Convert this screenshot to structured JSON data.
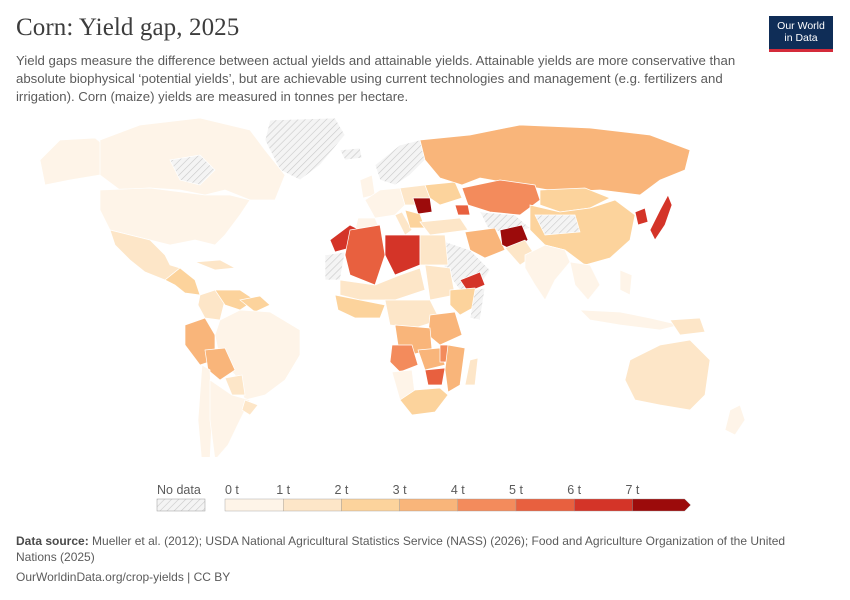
{
  "header": {
    "title": "Corn: Yield gap, 2025",
    "subtitle": "Yield gaps measure the difference between actual yields and attainable yields. Attainable yields are more conservative than absolute biophysical ‘potential yields’, but are achievable using current technologies and management (e.g. fertilizers and irrigation). Corn (maize) yields are measured in tonnes per hectare."
  },
  "logo": {
    "line1": "Our World",
    "line2": "in Data"
  },
  "legend": {
    "no_data_label": "No data",
    "ticks": [
      "0 t",
      "1 t",
      "2 t",
      "3 t",
      "4 t",
      "5 t",
      "6 t",
      "7 t"
    ],
    "colors": [
      "#fef4e8",
      "#fde6c8",
      "#fcd39c",
      "#f9b57a",
      "#f38b5c",
      "#e8603f",
      "#d43428",
      "#9c0b0b"
    ],
    "no_data_color": "#eeeeee"
  },
  "footer": {
    "source_label": "Data source:",
    "source_text": "Mueller et al. (2012); USDA National Agricultural Statistics Service (NASS) (2026); Food and Agriculture Organization of the United Nations (2025)",
    "url": "OurWorldinData.org/crop-yields | CC BY"
  },
  "chart_data": {
    "type": "choropleth",
    "title": "Corn: Yield gap, 2025",
    "unit": "tonnes per hectare",
    "scale_bins": [
      0,
      1,
      2,
      3,
      4,
      5,
      6,
      7
    ],
    "regions": [
      {
        "name": "Canada",
        "bin": 0
      },
      {
        "name": "United States",
        "bin": 0
      },
      {
        "name": "Mexico",
        "bin": 1
      },
      {
        "name": "Colombia",
        "bin": 1
      },
      {
        "name": "Venezuela",
        "bin": 2
      },
      {
        "name": "Peru",
        "bin": 3
      },
      {
        "name": "Brazil",
        "bin": 0
      },
      {
        "name": "Bolivia",
        "bin": 3
      },
      {
        "name": "Argentina",
        "bin": 0
      },
      {
        "name": "Greenland",
        "bin": "no data"
      },
      {
        "name": "Russia",
        "bin": 3
      },
      {
        "name": "Kazakhstan",
        "bin": 4
      },
      {
        "name": "China",
        "bin": 2
      },
      {
        "name": "Mongolia",
        "bin": 2
      },
      {
        "name": "Japan",
        "bin": 6
      },
      {
        "name": "North Korea",
        "bin": 6
      },
      {
        "name": "India",
        "bin": 0
      },
      {
        "name": "Afghanistan",
        "bin": 7
      },
      {
        "name": "Romania",
        "bin": 7
      },
      {
        "name": "Iran",
        "bin": 3
      },
      {
        "name": "Yemen",
        "bin": 6
      },
      {
        "name": "Morocco",
        "bin": 6
      },
      {
        "name": "Algeria",
        "bin": 5
      },
      {
        "name": "Libya",
        "bin": 6
      },
      {
        "name": "Egypt",
        "bin": 1
      },
      {
        "name": "Angola",
        "bin": 4
      },
      {
        "name": "Zambia",
        "bin": 3
      },
      {
        "name": "Mozambique",
        "bin": 3
      },
      {
        "name": "South Africa",
        "bin": 2
      },
      {
        "name": "Australia",
        "bin": 1
      },
      {
        "name": "New Zealand",
        "bin": 0
      }
    ]
  }
}
